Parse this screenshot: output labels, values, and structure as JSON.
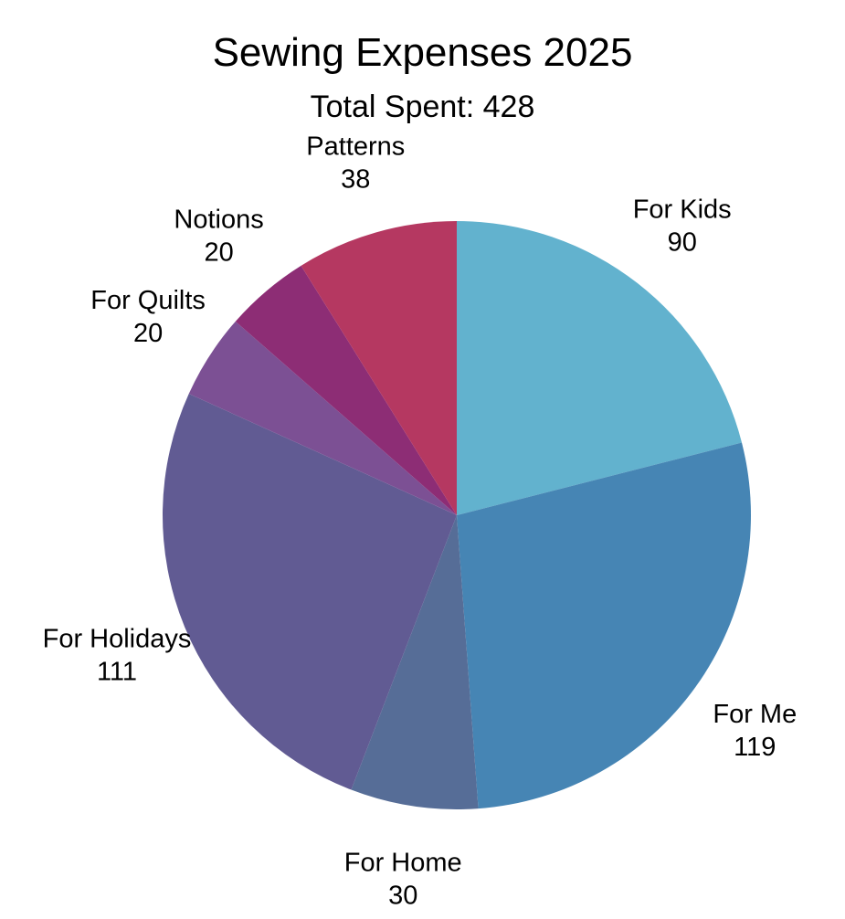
{
  "page": {
    "background_color": "#ffffff"
  },
  "header": {
    "title": "Sewing Expenses 2025",
    "subtitle": "Total Spent: 428"
  },
  "chart_data": {
    "type": "pie",
    "title": "Sewing Expenses 2025",
    "subtitle": "Total Spent: 428",
    "total": 428,
    "start_angle": "top",
    "direction": "clockwise",
    "legend": "none",
    "labels": "outside, category name above value",
    "segments": [
      {
        "label": "For Kids",
        "value": 90,
        "color": "#62b2ce"
      },
      {
        "label": "For Me",
        "value": 119,
        "color": "#4685b4"
      },
      {
        "label": "For Home",
        "value": 30,
        "color": "#566d97"
      },
      {
        "label": "For Holidays",
        "value": 111,
        "color": "#615b93"
      },
      {
        "label": "For Quilts",
        "value": 20,
        "color": "#7c5094"
      },
      {
        "label": "Notions",
        "value": 20,
        "color": "#8d2d75"
      },
      {
        "label": "Patterns",
        "value": 38,
        "color": "#b53861"
      }
    ]
  }
}
